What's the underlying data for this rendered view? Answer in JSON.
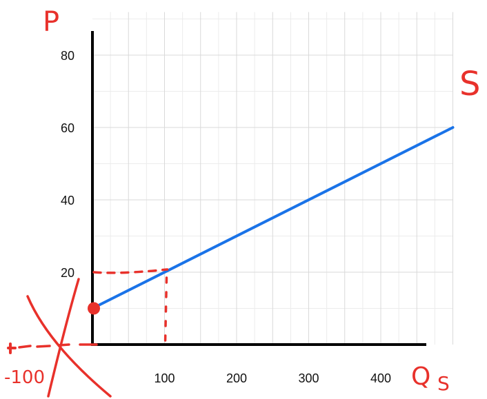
{
  "chart_data": {
    "type": "line",
    "title": "",
    "xlabel": "Q",
    "xlabel_sub": "S",
    "ylabel": "P",
    "series_label": "S",
    "xlim": [
      0,
      500
    ],
    "ylim": [
      0,
      90
    ],
    "x_ticks": [
      100,
      200,
      300,
      400
    ],
    "y_ticks": [
      20,
      40,
      60,
      80
    ],
    "grid": true,
    "series": [
      {
        "x": [
          0,
          500
        ],
        "y": [
          10,
          60
        ]
      }
    ],
    "highlight_point": {
      "x": 0,
      "y": 10
    },
    "reference_point": {
      "x": 100,
      "y": 20
    },
    "annotation_text": "-100",
    "colors": {
      "line": "#1a73e8",
      "annotation": "#e8312b",
      "axis": "#000000",
      "grid": "#d9d9d9"
    }
  }
}
